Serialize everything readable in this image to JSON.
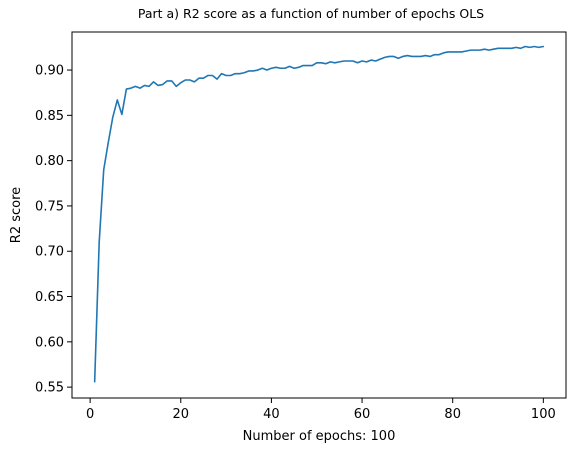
{
  "chart_data": {
    "type": "line",
    "title": "Part a) R2 score as a function of number of epochs OLS",
    "xlabel": "Number of epochs: 100",
    "ylabel": "R2 score",
    "xlim": [
      -4,
      105
    ],
    "ylim": [
      0.538,
      0.942
    ],
    "xticks": [
      0,
      20,
      40,
      60,
      80,
      100
    ],
    "yticks": [
      0.55,
      0.6,
      0.65,
      0.7,
      0.75,
      0.8,
      0.85,
      0.9
    ],
    "ytick_labels": [
      "0.55",
      "0.60",
      "0.65",
      "0.70",
      "0.75",
      "0.80",
      "0.85",
      "0.90"
    ],
    "grid": false,
    "series": [
      {
        "color": "#1f77b4",
        "x": [
          1,
          2,
          3,
          4,
          5,
          6,
          7,
          8,
          9,
          10,
          11,
          12,
          13,
          14,
          15,
          16,
          17,
          18,
          19,
          20,
          21,
          22,
          23,
          24,
          25,
          26,
          27,
          28,
          29,
          30,
          31,
          32,
          33,
          34,
          35,
          36,
          37,
          38,
          39,
          40,
          41,
          42,
          43,
          44,
          45,
          46,
          47,
          48,
          49,
          50,
          51,
          52,
          53,
          54,
          55,
          56,
          57,
          58,
          59,
          60,
          61,
          62,
          63,
          64,
          65,
          66,
          67,
          68,
          69,
          70,
          71,
          72,
          73,
          74,
          75,
          76,
          77,
          78,
          79,
          80,
          81,
          82,
          83,
          84,
          85,
          86,
          87,
          88,
          89,
          90,
          91,
          92,
          93,
          94,
          95,
          96,
          97,
          98,
          99,
          100
        ],
        "y": [
          0.556,
          0.71,
          0.79,
          0.82,
          0.848,
          0.867,
          0.851,
          0.879,
          0.88,
          0.882,
          0.88,
          0.883,
          0.882,
          0.887,
          0.883,
          0.884,
          0.888,
          0.888,
          0.882,
          0.886,
          0.889,
          0.889,
          0.887,
          0.891,
          0.891,
          0.894,
          0.894,
          0.89,
          0.896,
          0.894,
          0.894,
          0.896,
          0.896,
          0.897,
          0.899,
          0.899,
          0.9,
          0.902,
          0.9,
          0.902,
          0.903,
          0.902,
          0.902,
          0.904,
          0.902,
          0.903,
          0.905,
          0.905,
          0.905,
          0.908,
          0.908,
          0.907,
          0.909,
          0.908,
          0.909,
          0.91,
          0.91,
          0.91,
          0.908,
          0.91,
          0.909,
          0.911,
          0.91,
          0.912,
          0.914,
          0.915,
          0.915,
          0.913,
          0.915,
          0.916,
          0.915,
          0.915,
          0.915,
          0.916,
          0.915,
          0.917,
          0.917,
          0.919,
          0.92,
          0.92,
          0.92,
          0.92,
          0.921,
          0.922,
          0.922,
          0.922,
          0.923,
          0.922,
          0.923,
          0.924,
          0.924,
          0.924,
          0.924,
          0.925,
          0.924,
          0.926,
          0.925,
          0.926,
          0.925,
          0.926
        ]
      }
    ]
  }
}
